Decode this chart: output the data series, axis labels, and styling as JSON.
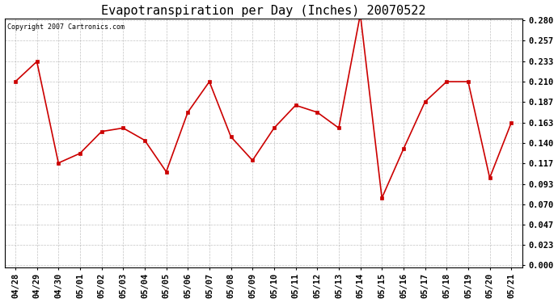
{
  "title": "Evapotranspiration per Day (Inches) 20070522",
  "copyright": "Copyright 2007 Cartronics.com",
  "x_labels": [
    "04/28",
    "04/29",
    "04/30",
    "05/01",
    "05/02",
    "05/03",
    "05/04",
    "05/05",
    "05/06",
    "05/07",
    "05/08",
    "05/09",
    "05/10",
    "05/11",
    "05/12",
    "05/13",
    "05/14",
    "05/15",
    "05/16",
    "05/17",
    "05/18",
    "05/19",
    "05/20",
    "05/21"
  ],
  "y_values": [
    0.21,
    0.233,
    0.117,
    0.128,
    0.153,
    0.157,
    0.143,
    0.107,
    0.175,
    0.21,
    0.147,
    0.12,
    0.157,
    0.183,
    0.175,
    0.157,
    0.287,
    0.077,
    0.133,
    0.187,
    0.21,
    0.21,
    0.1,
    0.163
  ],
  "line_color": "#cc0000",
  "marker": "s",
  "marker_size": 2.5,
  "background_color": "#ffffff",
  "plot_bg_color": "#ffffff",
  "grid_color": "#aaaaaa",
  "y_ticks": [
    0.0,
    0.023,
    0.047,
    0.07,
    0.093,
    0.117,
    0.14,
    0.163,
    0.187,
    0.21,
    0.233,
    0.257,
    0.28
  ],
  "ylim_min": 0.0,
  "ylim_max": 0.28,
  "title_fontsize": 11,
  "copyright_fontsize": 6,
  "tick_fontsize": 7.5,
  "fig_width": 6.9,
  "fig_height": 3.75,
  "dpi": 100
}
